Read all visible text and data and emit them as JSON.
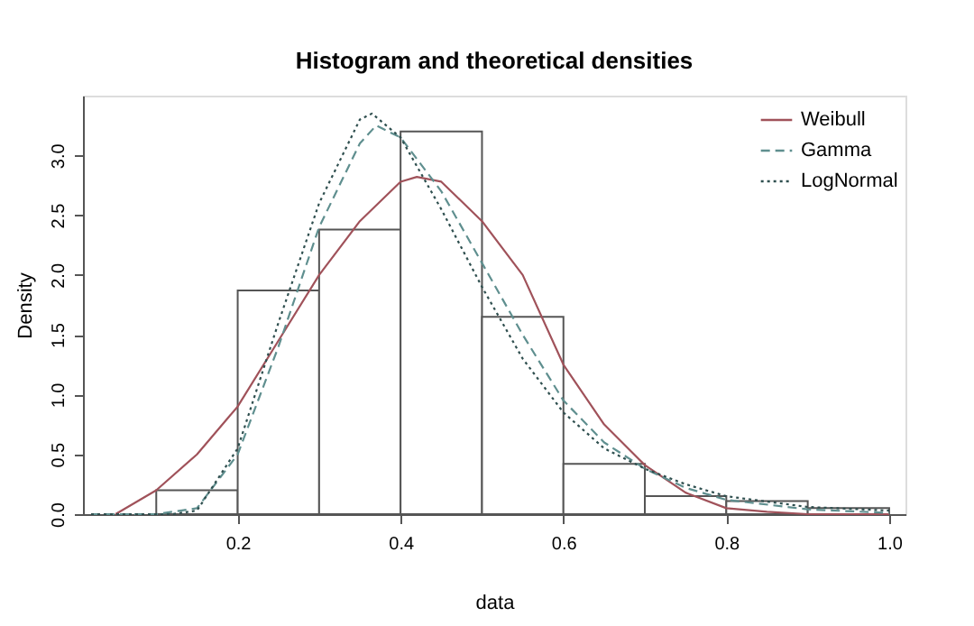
{
  "chart_data": {
    "type": "histogram",
    "title": "Histogram and theoretical densities",
    "xlabel": "data",
    "ylabel": "Density",
    "bins": [
      0.1,
      0.2,
      0.3,
      0.4,
      0.5,
      0.6,
      0.7,
      0.8,
      0.9,
      1.0
    ],
    "values": [
      0.2,
      1.87,
      2.38,
      3.2,
      1.65,
      0.42,
      0.15,
      0.11,
      0.05
    ],
    "color": "#ffffff",
    "xlim": [
      0.01,
      1.02
    ],
    "xticks": [
      0.2,
      0.4,
      0.6,
      0.8,
      {
        "value": 1,
        "label": "1.0"
      }
    ],
    "ylim": [
      0,
      3.5
    ],
    "yticks": [
      {
        "value": 0,
        "label": "0.0"
      },
      0.5,
      {
        "value": 1,
        "label": "1.0"
      },
      1.5,
      {
        "value": 2,
        "label": "2.0"
      },
      2.5,
      {
        "value": 3,
        "label": "3.0"
      }
    ],
    "grid": false,
    "legend": "top right",
    "series": [
      {
        "name": "Weibull",
        "type": "line",
        "color": "#a0525a",
        "line_style": "solid",
        "x": [
          0.05,
          0.1,
          0.15,
          0.2,
          0.25,
          0.3,
          0.35,
          0.4,
          0.42,
          0.45,
          0.5,
          0.55,
          0.6,
          0.65,
          0.7,
          0.75,
          0.8,
          0.85,
          0.9,
          1.0
        ],
        "values": [
          0,
          0.2,
          0.5,
          0.9,
          1.45,
          2.0,
          2.45,
          2.78,
          2.82,
          2.78,
          2.45,
          2.0,
          1.25,
          0.75,
          0.41,
          0.18,
          0.05,
          0.02,
          0,
          0
        ]
      },
      {
        "name": "Gamma",
        "type": "line",
        "color": "#5f8f8f",
        "line_style": "dashed",
        "x": [
          0.02,
          0.1,
          0.15,
          0.2,
          0.25,
          0.3,
          0.35,
          0.37,
          0.4,
          0.45,
          0.5,
          0.55,
          0.6,
          0.65,
          0.7,
          0.75,
          0.8,
          0.9,
          1.0
        ],
        "values": [
          0,
          0,
          0.05,
          0.5,
          1.4,
          2.4,
          3.1,
          3.25,
          3.15,
          2.7,
          2.1,
          1.5,
          0.95,
          0.6,
          0.38,
          0.22,
          0.12,
          0.04,
          0.01
        ]
      },
      {
        "name": "LogNormal",
        "type": "line",
        "color": "#2f4f4f",
        "line_style": "dotted",
        "x": [
          0.02,
          0.12,
          0.15,
          0.2,
          0.25,
          0.3,
          0.35,
          0.365,
          0.4,
          0.45,
          0.5,
          0.55,
          0.6,
          0.65,
          0.7,
          0.75,
          0.8,
          0.9,
          1.0
        ],
        "values": [
          0,
          0,
          0.03,
          0.55,
          1.6,
          2.6,
          3.3,
          3.35,
          3.15,
          2.55,
          1.9,
          1.3,
          0.85,
          0.55,
          0.38,
          0.25,
          0.15,
          0.06,
          0.03
        ]
      }
    ]
  }
}
